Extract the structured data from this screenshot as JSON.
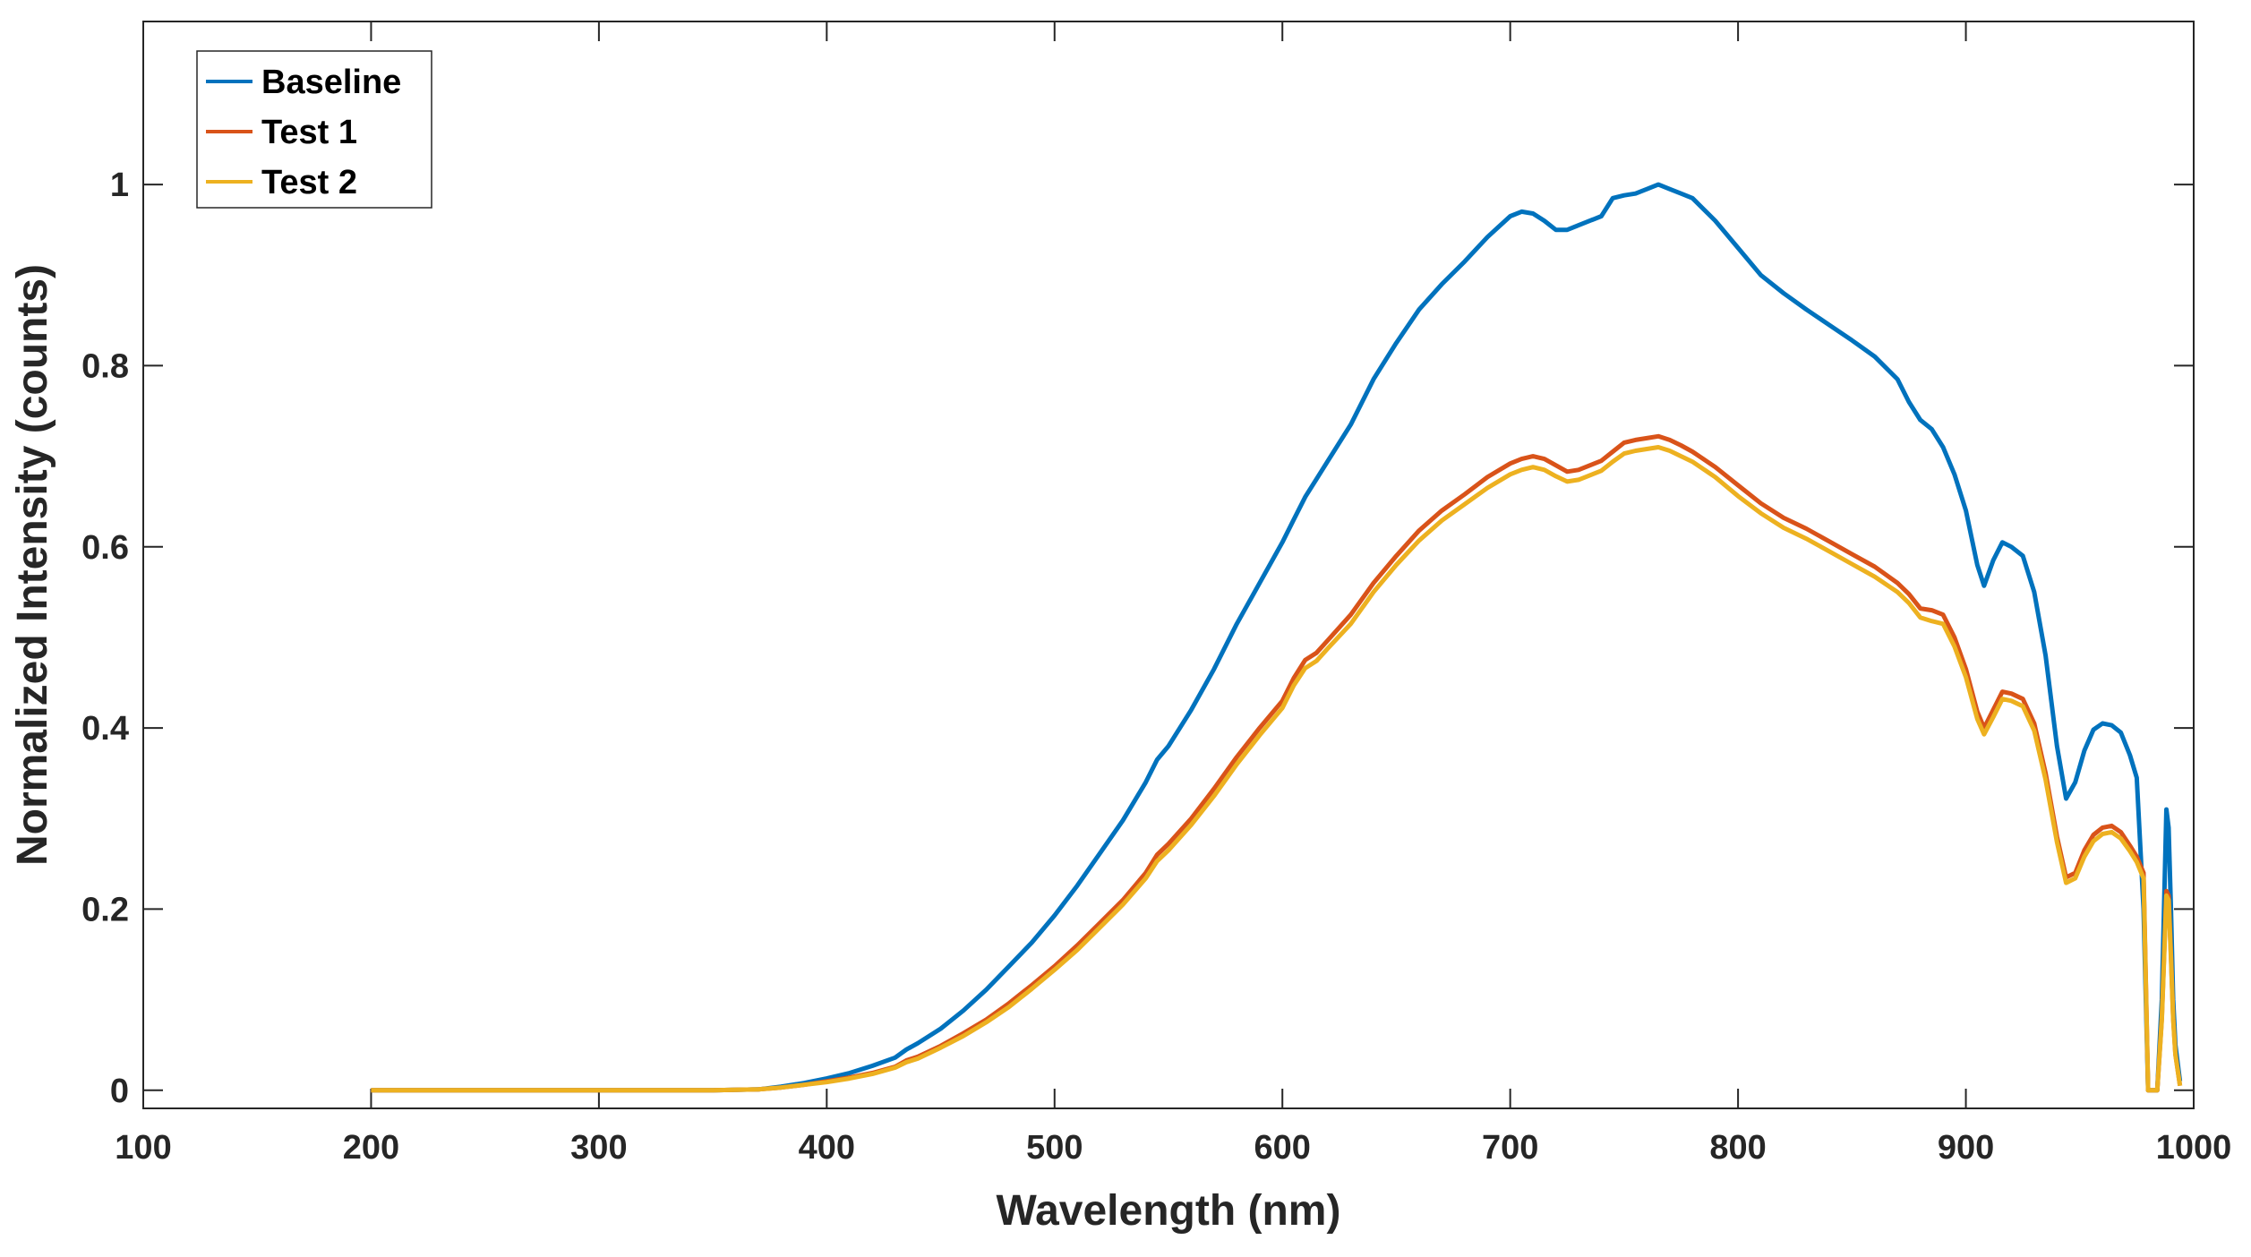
{
  "chart_data": {
    "type": "line",
    "title": "",
    "xlabel": "Wavelength (nm)",
    "ylabel": "Normalized Intensity (counts)",
    "xlim": [
      100,
      1000
    ],
    "ylim": [
      -0.02,
      1.18
    ],
    "x_ticks": [
      100,
      200,
      300,
      400,
      500,
      600,
      700,
      800,
      900,
      1000
    ],
    "y_ticks": [
      0,
      0.2,
      0.4,
      0.6,
      0.8,
      1
    ],
    "x_tick_labels": [
      "100",
      "200",
      "300",
      "400",
      "500",
      "600",
      "700",
      "800",
      "900",
      "1000"
    ],
    "y_tick_labels": [
      "0",
      "0.2",
      "0.4",
      "0.6",
      "0.8",
      "1"
    ],
    "grid": false,
    "legend_position": "top-left",
    "series": [
      {
        "name": "Baseline",
        "color": "#0072BD",
        "x": [
          200,
          250,
          300,
          350,
          370,
          380,
          390,
          400,
          410,
          420,
          430,
          435,
          440,
          450,
          460,
          470,
          480,
          490,
          500,
          510,
          520,
          530,
          540,
          545,
          550,
          560,
          570,
          580,
          590,
          600,
          605,
          610,
          615,
          620,
          630,
          640,
          650,
          660,
          670,
          680,
          690,
          700,
          705,
          710,
          715,
          720,
          725,
          730,
          740,
          745,
          750,
          755,
          760,
          765,
          770,
          775,
          780,
          790,
          800,
          810,
          820,
          830,
          840,
          850,
          860,
          870,
          875,
          880,
          885,
          890,
          895,
          900,
          905,
          908,
          912,
          916,
          920,
          925,
          930,
          935,
          940,
          944,
          948,
          952,
          956,
          960,
          964,
          968,
          972,
          975,
          978,
          980,
          982,
          984,
          986,
          988,
          989,
          990,
          991,
          992,
          994
        ],
        "values": [
          0,
          0,
          0,
          0,
          0.001,
          0.004,
          0.008,
          0.013,
          0.019,
          0.027,
          0.036,
          0.045,
          0.052,
          0.068,
          0.088,
          0.111,
          0.137,
          0.163,
          0.193,
          0.226,
          0.262,
          0.298,
          0.34,
          0.365,
          0.38,
          0.42,
          0.465,
          0.515,
          0.56,
          0.605,
          0.63,
          0.655,
          0.675,
          0.695,
          0.735,
          0.785,
          0.825,
          0.862,
          0.89,
          0.915,
          0.942,
          0.965,
          0.97,
          0.968,
          0.96,
          0.95,
          0.95,
          0.955,
          0.965,
          0.985,
          0.988,
          0.99,
          0.995,
          1.0,
          0.995,
          0.99,
          0.985,
          0.96,
          0.93,
          0.9,
          0.88,
          0.862,
          0.845,
          0.828,
          0.81,
          0.785,
          0.76,
          0.74,
          0.73,
          0.71,
          0.68,
          0.64,
          0.58,
          0.557,
          0.585,
          0.605,
          0.6,
          0.59,
          0.55,
          0.48,
          0.38,
          0.322,
          0.34,
          0.375,
          0.398,
          0.405,
          0.403,
          0.395,
          0.37,
          0.345,
          0.2,
          0.0,
          0.0,
          0.0,
          0.1,
          0.31,
          0.29,
          0.2,
          0.1,
          0.05,
          0.01
        ]
      },
      {
        "name": "Test 1",
        "color": "#D95319",
        "x": [
          200,
          250,
          300,
          350,
          370,
          380,
          390,
          400,
          410,
          420,
          430,
          435,
          440,
          450,
          460,
          470,
          480,
          490,
          500,
          510,
          520,
          530,
          540,
          545,
          550,
          560,
          570,
          580,
          590,
          600,
          605,
          610,
          615,
          620,
          630,
          640,
          650,
          660,
          670,
          680,
          690,
          700,
          705,
          710,
          715,
          720,
          725,
          730,
          740,
          745,
          750,
          755,
          760,
          765,
          770,
          775,
          780,
          790,
          800,
          810,
          820,
          830,
          840,
          850,
          860,
          870,
          875,
          880,
          885,
          890,
          895,
          900,
          905,
          908,
          912,
          916,
          920,
          925,
          930,
          935,
          940,
          944,
          948,
          952,
          956,
          960,
          964,
          968,
          972,
          975,
          978,
          980,
          982,
          984,
          986,
          988,
          989,
          990,
          991,
          992,
          994
        ],
        "values": [
          0,
          0,
          0,
          0,
          0.001,
          0.003,
          0.006,
          0.01,
          0.014,
          0.019,
          0.026,
          0.033,
          0.037,
          0.049,
          0.063,
          0.078,
          0.096,
          0.116,
          0.137,
          0.16,
          0.185,
          0.21,
          0.24,
          0.26,
          0.272,
          0.3,
          0.333,
          0.368,
          0.4,
          0.43,
          0.455,
          0.475,
          0.483,
          0.497,
          0.525,
          0.56,
          0.59,
          0.618,
          0.64,
          0.658,
          0.677,
          0.692,
          0.697,
          0.7,
          0.697,
          0.69,
          0.683,
          0.685,
          0.695,
          0.705,
          0.715,
          0.718,
          0.72,
          0.722,
          0.718,
          0.712,
          0.705,
          0.688,
          0.668,
          0.648,
          0.632,
          0.62,
          0.606,
          0.592,
          0.578,
          0.56,
          0.548,
          0.532,
          0.53,
          0.525,
          0.5,
          0.465,
          0.418,
          0.4,
          0.42,
          0.44,
          0.438,
          0.432,
          0.405,
          0.35,
          0.28,
          0.235,
          0.24,
          0.265,
          0.282,
          0.29,
          0.292,
          0.285,
          0.27,
          0.258,
          0.24,
          0.0,
          0.0,
          0.0,
          0.08,
          0.22,
          0.215,
          0.15,
          0.08,
          0.04,
          0.005
        ]
      },
      {
        "name": "Test 2",
        "color": "#EDB120",
        "x": [
          200,
          250,
          300,
          350,
          370,
          380,
          390,
          400,
          410,
          420,
          430,
          435,
          440,
          450,
          460,
          470,
          480,
          490,
          500,
          510,
          520,
          530,
          540,
          545,
          550,
          560,
          570,
          580,
          590,
          600,
          605,
          610,
          615,
          620,
          630,
          640,
          650,
          660,
          670,
          680,
          690,
          700,
          705,
          710,
          715,
          720,
          725,
          730,
          740,
          745,
          750,
          755,
          760,
          765,
          770,
          775,
          780,
          790,
          800,
          810,
          820,
          830,
          840,
          850,
          860,
          870,
          875,
          880,
          885,
          890,
          895,
          900,
          905,
          908,
          912,
          916,
          920,
          925,
          930,
          935,
          940,
          944,
          948,
          952,
          956,
          960,
          964,
          968,
          972,
          975,
          978,
          980,
          982,
          984,
          986,
          988,
          989,
          990,
          991,
          992,
          994
        ],
        "values": [
          0,
          0,
          0,
          0,
          0.001,
          0.003,
          0.006,
          0.009,
          0.013,
          0.018,
          0.025,
          0.031,
          0.035,
          0.047,
          0.06,
          0.075,
          0.092,
          0.112,
          0.133,
          0.155,
          0.18,
          0.205,
          0.234,
          0.253,
          0.265,
          0.293,
          0.325,
          0.36,
          0.392,
          0.422,
          0.447,
          0.466,
          0.474,
          0.488,
          0.515,
          0.55,
          0.58,
          0.607,
          0.629,
          0.647,
          0.665,
          0.68,
          0.685,
          0.688,
          0.685,
          0.678,
          0.672,
          0.674,
          0.684,
          0.694,
          0.703,
          0.706,
          0.708,
          0.71,
          0.706,
          0.7,
          0.694,
          0.677,
          0.656,
          0.637,
          0.621,
          0.609,
          0.595,
          0.581,
          0.567,
          0.55,
          0.538,
          0.522,
          0.518,
          0.515,
          0.49,
          0.456,
          0.41,
          0.393,
          0.412,
          0.432,
          0.43,
          0.424,
          0.397,
          0.343,
          0.274,
          0.229,
          0.234,
          0.258,
          0.275,
          0.283,
          0.285,
          0.278,
          0.264,
          0.252,
          0.234,
          0.0,
          0.0,
          0.0,
          0.078,
          0.215,
          0.21,
          0.146,
          0.078,
          0.039,
          0.005
        ]
      }
    ]
  }
}
